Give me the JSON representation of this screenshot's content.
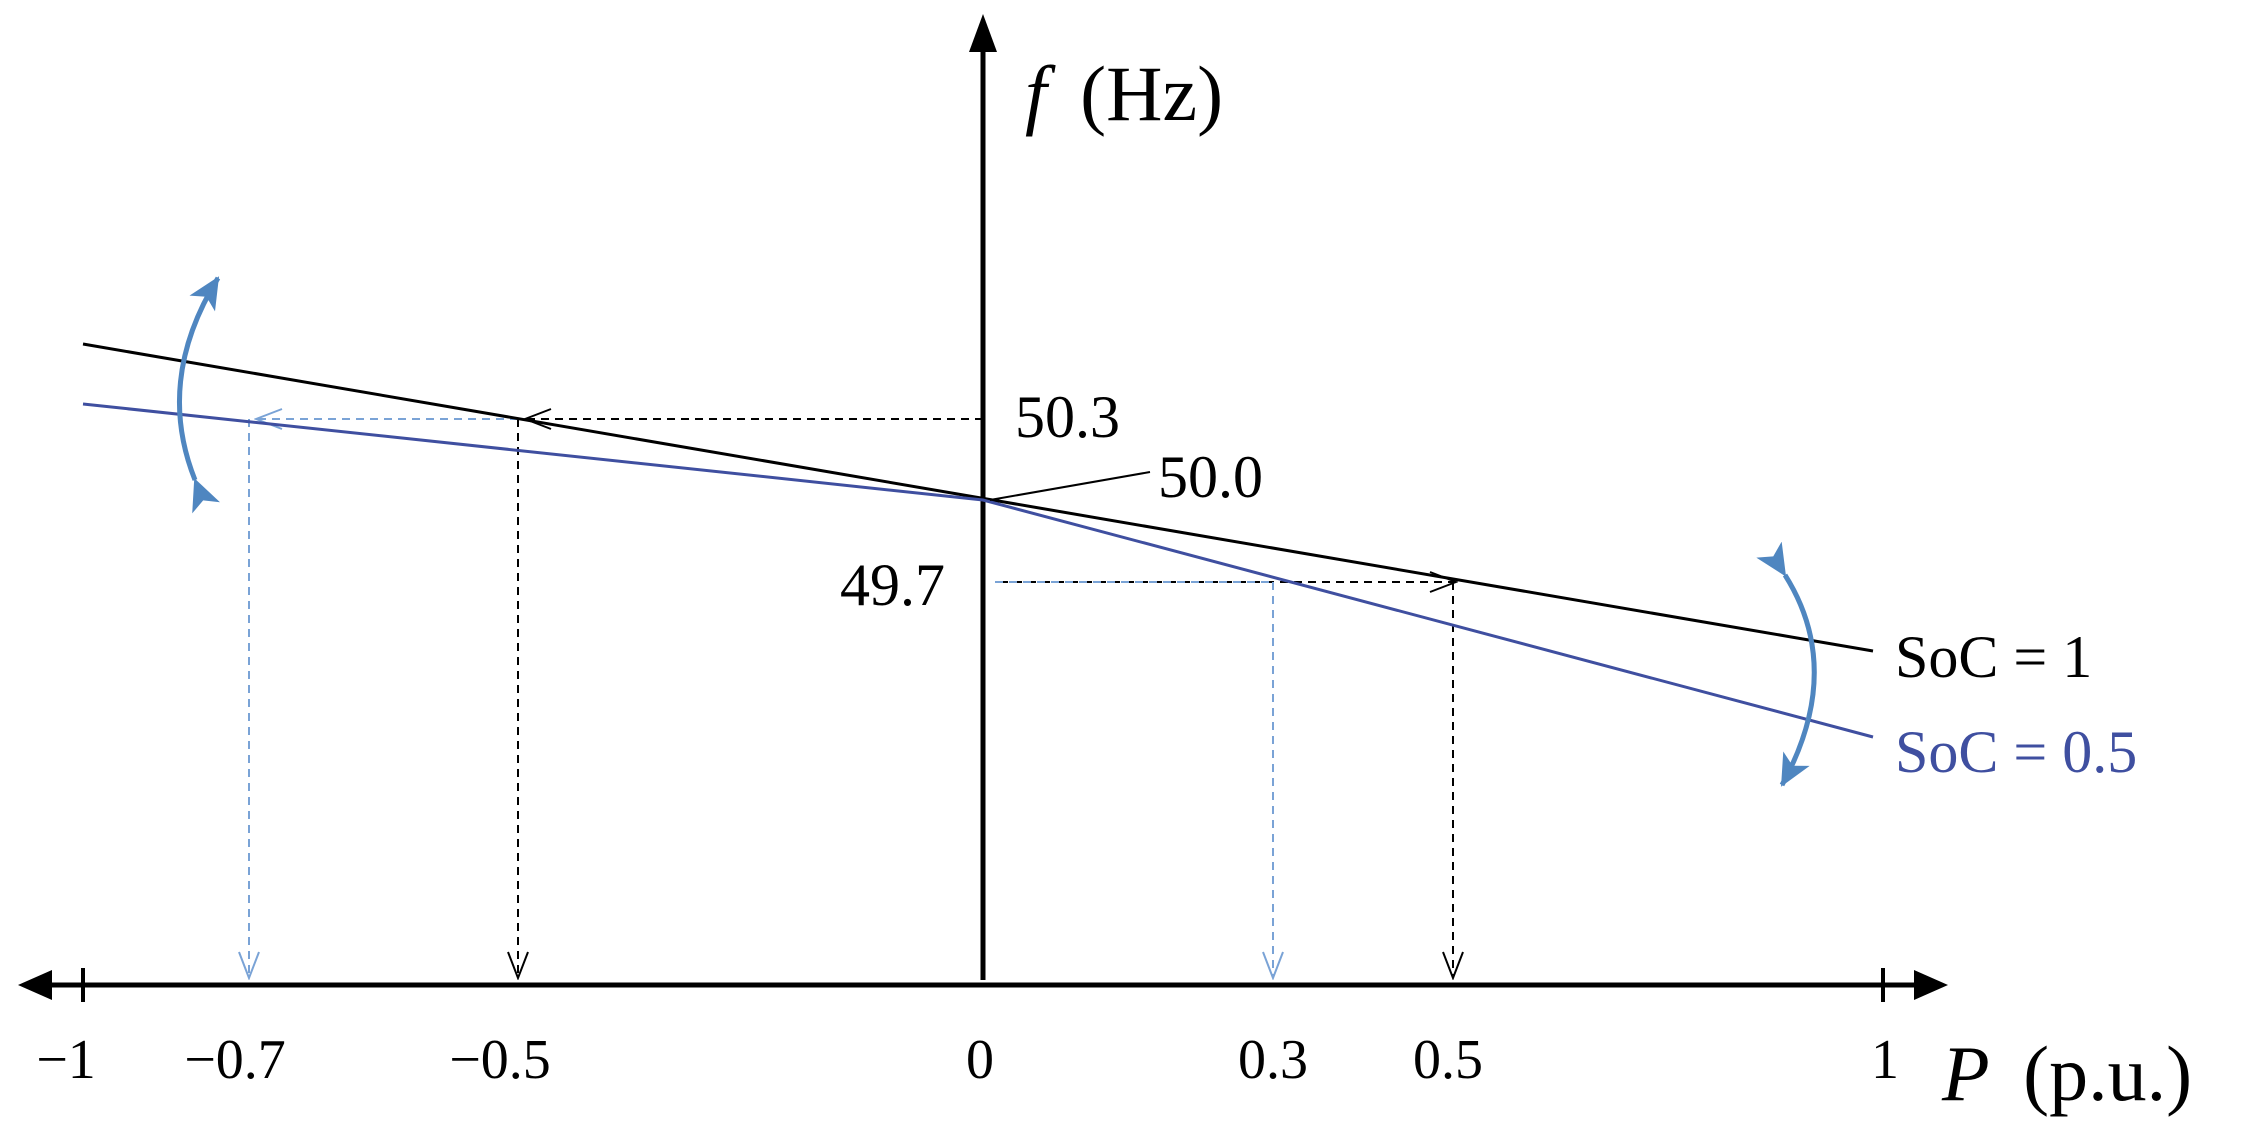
{
  "axes": {
    "y_title_var": "f",
    "y_title_unit": "(Hz)",
    "x_title_var": "P",
    "x_title_unit": "(p.u.)"
  },
  "x_ticks": [
    "−1",
    "−0.7",
    "−0.5",
    "0",
    "0.3",
    "0.5",
    "1"
  ],
  "freq_labels": {
    "f_high": "50.3",
    "f_nominal": "50.0",
    "f_low": "49.7"
  },
  "legend": {
    "soc_1": "SoC = 1",
    "soc_05": "SoC = 0.5"
  },
  "colors": {
    "soc_1": "#000000",
    "soc_05": "#3f4fa0",
    "guide_soc_05": "#7aa3d6",
    "arrow_accent": "#4f86c0"
  },
  "chart_data": {
    "type": "line",
    "xlabel": "P (p.u.)",
    "ylabel": "f (Hz)",
    "xlim": [
      -1,
      1
    ],
    "series": [
      {
        "name": "SoC = 1",
        "x": [
          -1,
          0,
          1
        ],
        "y": [
          50.45,
          50.0,
          49.55
        ]
      },
      {
        "name": "SoC = 0.5",
        "x": [
          -1,
          0,
          1
        ],
        "y": [
          50.33,
          50.0,
          49.0
        ]
      }
    ],
    "annotations": [
      {
        "text": "50.3",
        "f": 50.3
      },
      {
        "text": "50.0",
        "f": 50.0
      },
      {
        "text": "49.7",
        "f": 49.7
      }
    ]
  }
}
